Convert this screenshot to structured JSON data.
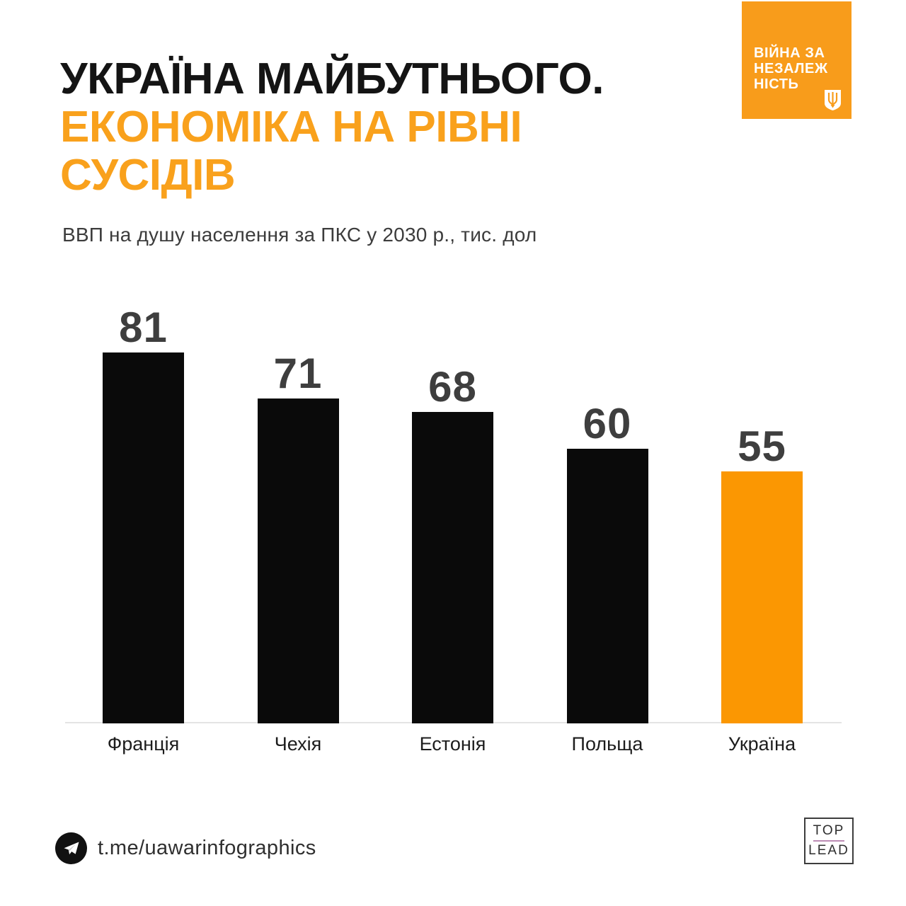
{
  "header": {
    "title_line1": "УКРАЇНА МАЙБУТНЬОГО.",
    "title_line2": "ЕКОНОМІКА НА РІВНІ",
    "title_line3": "СУСІДІВ",
    "subtitle": "ВВП на душу населення за ПКС у 2030 р., тис. дол"
  },
  "badge": {
    "lines": [
      "ВІЙНА ЗА",
      "НЕЗАЛЕЖ",
      "НІСТЬ"
    ],
    "bg_color": "#F89C1B",
    "icon": "trident-icon"
  },
  "chart_data": {
    "type": "bar",
    "title": "ВВП на душу населення за ПКС у 2030 р., тис. дол",
    "categories": [
      "Франція",
      "Чехія",
      "Естонія",
      "Польща",
      "Україна"
    ],
    "values": [
      81,
      71,
      68,
      60,
      55
    ],
    "bar_colors": [
      "#0a0a0a",
      "#0a0a0a",
      "#0a0a0a",
      "#0a0a0a",
      "#FB9702"
    ],
    "highlight_category": "Україна",
    "value_label_color": "#3E3E3E",
    "xlabel": "",
    "ylabel": "",
    "ylim": [
      0,
      85
    ],
    "grid": false,
    "legend": false,
    "axis_line_color": "#e4e4e4"
  },
  "footer": {
    "telegram_handle": "t.me/uawarinfographics",
    "toplead_top": "TOP",
    "toplead_lead": "LEAD"
  },
  "colors": {
    "accent_orange": "#F9A11C",
    "title_black": "#141414"
  }
}
